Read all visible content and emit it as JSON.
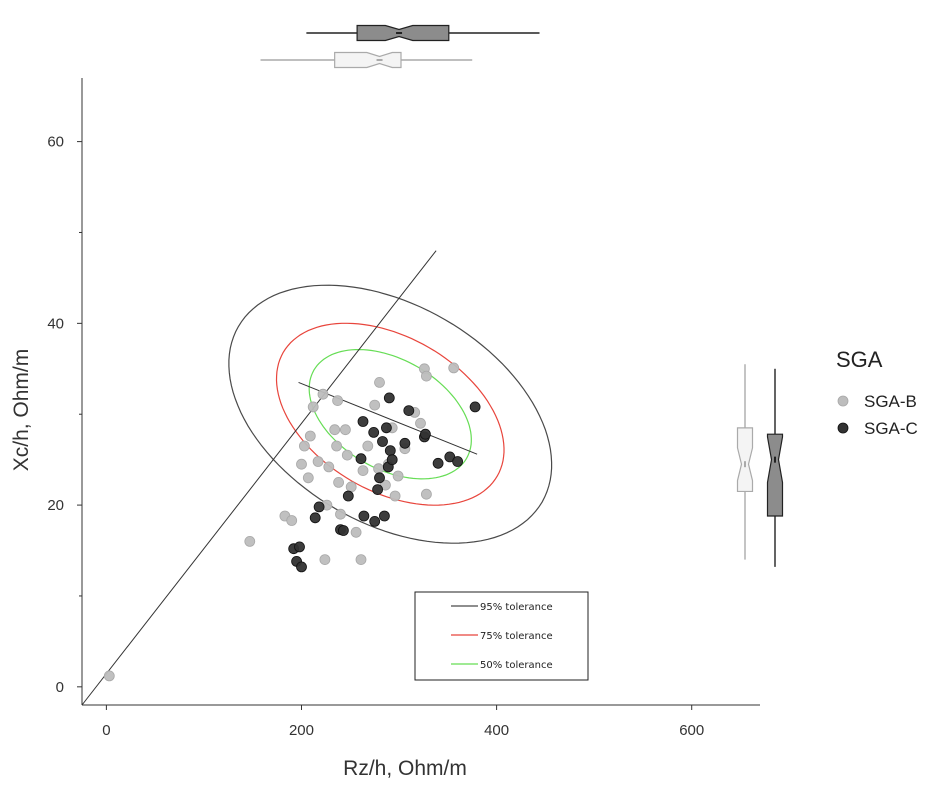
{
  "chart_data": {
    "type": "scatter",
    "title": "",
    "xlabel": "Rz/h, Ohm/m",
    "ylabel": "Xc/h, Ohm/m",
    "xlim": [
      -25,
      670
    ],
    "ylim": [
      -2,
      67
    ],
    "x_ticks": [
      0,
      200,
      400,
      600
    ],
    "y_ticks": [
      0,
      20,
      40,
      60
    ],
    "grid": false,
    "legend": {
      "title": "SGA",
      "placement": "right",
      "entries": [
        {
          "label": "SGA-B",
          "color": "#bdbdbd"
        },
        {
          "label": "SGA-C",
          "color": "#333333"
        }
      ]
    },
    "series": [
      {
        "name": "SGA-B",
        "color": "#bdbdbd",
        "points": [
          [
            3,
            1.2
          ],
          [
            147,
            16
          ],
          [
            183,
            18.8
          ],
          [
            190,
            18.3
          ],
          [
            200,
            24.5
          ],
          [
            203,
            26.5
          ],
          [
            207,
            23
          ],
          [
            209,
            27.6
          ],
          [
            212,
            30.8
          ],
          [
            217,
            24.8
          ],
          [
            222,
            32.2
          ],
          [
            224,
            14
          ],
          [
            226,
            20
          ],
          [
            228,
            24.2
          ],
          [
            234,
            28.3
          ],
          [
            236,
            26.5
          ],
          [
            237,
            31.5
          ],
          [
            238,
            22.5
          ],
          [
            240,
            19
          ],
          [
            245,
            28.3
          ],
          [
            247,
            25.5
          ],
          [
            251,
            22
          ],
          [
            256,
            17
          ],
          [
            261,
            14
          ],
          [
            263,
            23.8
          ],
          [
            268,
            26.5
          ],
          [
            275,
            31
          ],
          [
            279,
            24
          ],
          [
            286,
            22.2
          ],
          [
            289,
            24.5
          ],
          [
            293,
            28.5
          ],
          [
            296,
            21
          ],
          [
            299,
            23.2
          ],
          [
            306,
            26.2
          ],
          [
            316,
            30.2
          ],
          [
            322,
            29
          ],
          [
            326,
            35
          ],
          [
            328,
            34.2
          ],
          [
            356,
            35.1
          ],
          [
            328,
            21.2
          ],
          [
            280,
            33.5
          ]
        ]
      },
      {
        "name": "SGA-C",
        "color": "#333333",
        "points": [
          [
            192,
            15.2
          ],
          [
            195,
            13.8
          ],
          [
            198,
            15.4
          ],
          [
            200,
            13.2
          ],
          [
            214,
            18.6
          ],
          [
            218,
            19.8
          ],
          [
            240,
            17.3
          ],
          [
            243,
            17.2
          ],
          [
            248,
            21
          ],
          [
            261,
            25.1
          ],
          [
            263,
            29.2
          ],
          [
            264,
            18.8
          ],
          [
            274,
            28
          ],
          [
            275,
            18.2
          ],
          [
            278,
            21.7
          ],
          [
            280,
            23
          ],
          [
            283,
            27
          ],
          [
            285,
            18.8
          ],
          [
            287,
            28.5
          ],
          [
            289,
            24.2
          ],
          [
            290,
            31.8
          ],
          [
            291,
            26
          ],
          [
            293,
            25
          ],
          [
            306,
            26.8
          ],
          [
            310,
            30.4
          ],
          [
            326,
            27.5
          ],
          [
            327,
            27.8
          ],
          [
            340,
            24.6
          ],
          [
            352,
            25.3
          ],
          [
            360,
            24.8
          ],
          [
            378,
            30.8
          ]
        ]
      }
    ],
    "tolerance_ellipses": [
      {
        "label": "95% tolerance",
        "color": "#4a4a4a",
        "center": [
          291,
          30
        ],
        "rx": 112,
        "ry": 19.3,
        "angle": 60
      },
      {
        "label": "75% tolerance",
        "color": "#e8453c",
        "center": [
          291,
          30
        ],
        "rx": 79,
        "ry": 13.6,
        "angle": 60
      },
      {
        "label": "50% tolerance",
        "color": "#66dd55",
        "center": [
          291,
          30
        ],
        "rx": 56,
        "ry": 9.7,
        "angle": 60
      }
    ],
    "major_axis": [
      [
        -25,
        -2
      ],
      [
        338,
        48
      ]
    ],
    "minor_axis": [
      [
        197,
        33.5
      ],
      [
        380,
        25.6
      ]
    ],
    "x_boxplots": [
      {
        "group": "SGA-C",
        "min": 205,
        "q1": 257,
        "median": 300,
        "q3": 351,
        "max": 444,
        "notch": 14,
        "fill": "#8c8c8c",
        "stroke": "#222222"
      },
      {
        "group": "SGA-B",
        "min": 158,
        "q1": 234,
        "median": 280,
        "q3": 302,
        "max": 375,
        "notch": 13,
        "fill": "#f4f4f4",
        "stroke": "#aaaaaa"
      }
    ],
    "y_boxplots": [
      {
        "group": "SGA-B",
        "min": 14,
        "q1": 21.5,
        "median": 24.5,
        "q3": 28.5,
        "max": 35.5,
        "notch": 1.8,
        "fill": "#f4f4f4",
        "stroke": "#aaaaaa"
      },
      {
        "group": "SGA-C",
        "min": 13.2,
        "q1": 18.8,
        "median": 25,
        "q3": 27.8,
        "max": 35,
        "notch": 2.5,
        "fill": "#8c8c8c",
        "stroke": "#222222"
      }
    ]
  }
}
